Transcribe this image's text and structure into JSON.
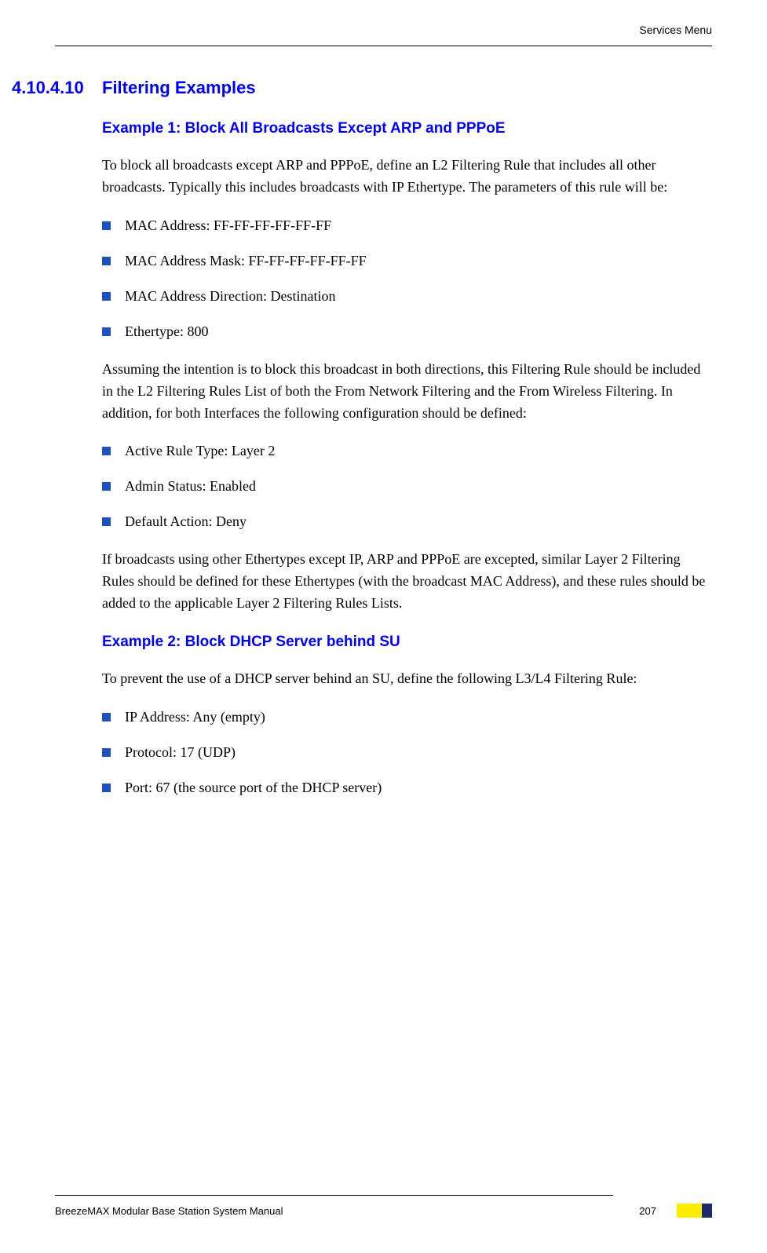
{
  "header": {
    "right_text": "Services Menu"
  },
  "section": {
    "number": "4.10.4.10",
    "title": "Filtering Examples"
  },
  "example1": {
    "title": "Example 1: Block All Broadcasts Except ARP and PPPoE",
    "intro": "To block all broadcasts except ARP and PPPoE, define an L2 Filtering Rule that includes all other broadcasts. Typically this includes broadcasts with IP Ethertype. The parameters of this rule will be:",
    "bullets1": [
      "MAC Address: FF-FF-FF-FF-FF-FF",
      "MAC Address Mask: FF-FF-FF-FF-FF-FF",
      "MAC Address Direction: Destination",
      "Ethertype: 800"
    ],
    "middle_text": "Assuming the intention is to block this broadcast in both directions, this Filtering Rule should be included in the L2 Filtering Rules List of both the From Network Filtering and the From Wireless Filtering. In addition, for both Interfaces the following configuration should be defined:",
    "bullets2": [
      "Active Rule Type: Layer 2",
      "Admin Status: Enabled",
      "Default Action: Deny"
    ],
    "closing_text": "If broadcasts using other Ethertypes except IP, ARP and PPPoE are excepted, similar Layer 2 Filtering Rules should be defined for these Ethertypes (with the broadcast MAC Address), and these rules should be added to the applicable Layer 2 Filtering Rules Lists."
  },
  "example2": {
    "title": "Example 2: Block DHCP Server behind SU",
    "intro": "To prevent the use of a DHCP server behind an SU, define the following L3/L4 Filtering Rule:",
    "bullets": [
      "IP Address: Any (empty)",
      "Protocol: 17 (UDP)",
      "Port: 67 (the source port of the DHCP server)"
    ]
  },
  "footer": {
    "left_text": "BreezeMAX Modular Base Station System Manual",
    "page_number": "207"
  },
  "colors": {
    "heading_blue": "#0000ff",
    "bullet_blue": "#1e50c0",
    "marker_yellow": "#ffed00",
    "marker_dark": "#1e2a6b",
    "text_black": "#000000",
    "background": "#ffffff"
  }
}
